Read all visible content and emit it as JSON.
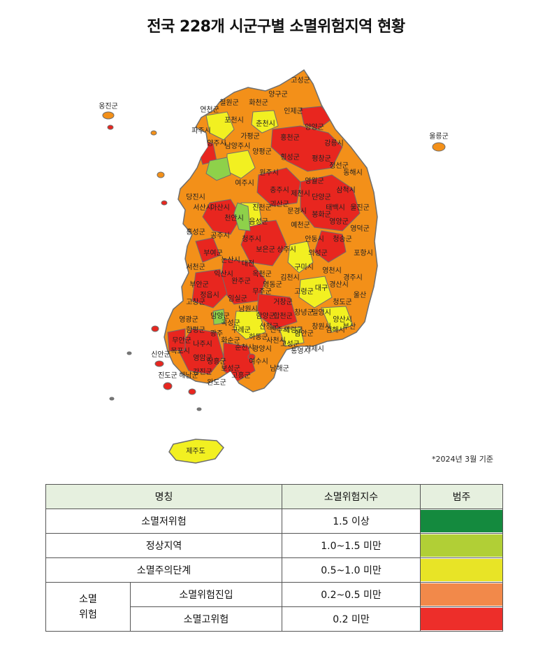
{
  "title": "전국 228개 시군구별 소멸위험지역 현황",
  "basis_note": "*2024년 3월 기준",
  "map": {
    "labels": [
      "고성군",
      "양구군",
      "철원군",
      "화천군",
      "연천군",
      "인제군",
      "포천시",
      "춘천시",
      "양양군",
      "파주시",
      "가평군",
      "홍천군",
      "강릉시",
      "양주시",
      "남양주시",
      "양평군",
      "횡성군",
      "평창군",
      "정선군",
      "동해시",
      "원주시",
      "영월군",
      "삼척시",
      "여주시",
      "충주시",
      "제천시",
      "단양군",
      "태백시",
      "울진군",
      "당진시",
      "서산시",
      "아산시",
      "천안시",
      "진천군",
      "음성군",
      "괴산군",
      "문경시",
      "봉화군",
      "영양군",
      "영덕군",
      "예천군",
      "안동시",
      "청송군",
      "홍성군",
      "공주시",
      "청주시",
      "보은군",
      "상주시",
      "의성군",
      "포항시",
      "부여군",
      "논산시",
      "대전",
      "옥천군",
      "영동군",
      "김천시",
      "구미시",
      "영천시",
      "경주시",
      "서천군",
      "익산시",
      "완주군",
      "무주군",
      "거창군",
      "고령군",
      "대구",
      "경산시",
      "청도군",
      "울산",
      "부안군",
      "정읍시",
      "임실군",
      "남원시",
      "함양군",
      "합천군",
      "창녕군",
      "밀양시",
      "양산시",
      "고창군",
      "담양군",
      "곡성군",
      "구례군",
      "하동군",
      "산청군",
      "진주시",
      "의령군",
      "함안군",
      "창원시",
      "김해시",
      "부산",
      "영광군",
      "함평군",
      "광주",
      "화순군",
      "순천시",
      "광양시",
      "사천시",
      "고성군",
      "통영시",
      "거제시",
      "무안군",
      "목포시",
      "나주시",
      "영암군",
      "장흥군",
      "보성군",
      "고흥군",
      "여수시",
      "남해군",
      "신안군",
      "진도군",
      "해남군",
      "강진군",
      "완도군",
      "울릉군",
      "옹진군",
      "제주도"
    ]
  },
  "legend": {
    "headers": [
      "명칭",
      "소멸위험지수",
      "범주"
    ],
    "group_label": "소멸\n위험",
    "rows": [
      {
        "name": "소멸저위험",
        "range": "1.5 이상",
        "color": "#148a3e"
      },
      {
        "name": "정상지역",
        "range": "1.0~1.5 미만",
        "color": "#b1cf36"
      },
      {
        "name": "소멸주의단계",
        "range": "0.5~1.0 미만",
        "color": "#e8e426"
      },
      {
        "name": "소멸위험진입",
        "range": "0.2~0.5 미만",
        "color": "#f2894a"
      },
      {
        "name": "소멸고위험",
        "range": "0.2 미만",
        "color": "#ed2e2a"
      }
    ]
  },
  "colors": {
    "high_risk": "#e8261f",
    "entering": "#f39019",
    "caution": "#f2f021",
    "normal": "#8ed14a",
    "low": "#148a3e",
    "border": "#6e6e6e"
  }
}
